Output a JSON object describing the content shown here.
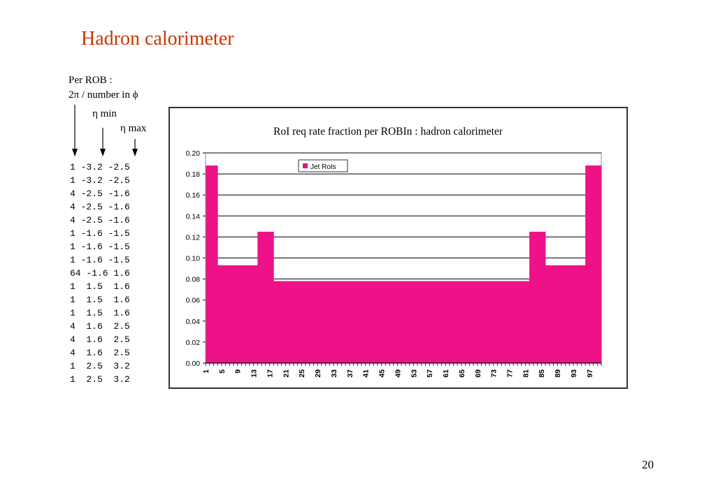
{
  "slide": {
    "title": "Hadron calorimeter",
    "header_line1": "Per ROB :",
    "header_line2": "2π / number in ϕ",
    "eta_min_label": "η min",
    "eta_max_label": "η max",
    "page_number": "20"
  },
  "rob_table": [
    "1 -3.2 -2.5",
    "1 -3.2 -2.5",
    "4 -2.5 -1.6",
    "4 -2.5 -1.6",
    "4 -2.5 -1.6",
    "1 -1.6 -1.5",
    "1 -1.6 -1.5",
    "1 -1.6 -1.5",
    "64 -1.6 1.6",
    "1  1.5  1.6",
    "1  1.5  1.6",
    "1  1.5  1.6",
    "4  1.6  2.5",
    "4  1.6  2.5",
    "4  1.6  2.5",
    "1  2.5  3.2",
    "1  2.5  3.2"
  ],
  "chart_data": {
    "type": "area",
    "title": "RoI req rate fraction per ROBIn : hadron calorimeter",
    "xlabel": "",
    "ylabel": "",
    "ylim": [
      0,
      0.2
    ],
    "yticks": [
      "0.00",
      "0.02",
      "0.04",
      "0.06",
      "0.08",
      "0.10",
      "0.12",
      "0.14",
      "0.16",
      "0.18",
      "0.20"
    ],
    "xlim": [
      1,
      100
    ],
    "xticks": [
      "1",
      "5",
      "9",
      "13",
      "17",
      "21",
      "25",
      "29",
      "33",
      "37",
      "41",
      "45",
      "49",
      "53",
      "57",
      "61",
      "65",
      "69",
      "73",
      "77",
      "81",
      "85",
      "89",
      "93",
      "97"
    ],
    "grid": true,
    "legend_position": "top-left",
    "series": [
      {
        "name": "Jet RoIs",
        "color": "#ee1188",
        "segments": [
          {
            "x_start": 1,
            "x_end": 4,
            "value": 0.188
          },
          {
            "x_start": 4,
            "x_end": 14,
            "value": 0.093
          },
          {
            "x_start": 14,
            "x_end": 18,
            "value": 0.125
          },
          {
            "x_start": 18,
            "x_end": 82,
            "value": 0.078
          },
          {
            "x_start": 82,
            "x_end": 86,
            "value": 0.125
          },
          {
            "x_start": 86,
            "x_end": 96,
            "value": 0.093
          },
          {
            "x_start": 96,
            "x_end": 100,
            "value": 0.188
          }
        ]
      }
    ]
  }
}
